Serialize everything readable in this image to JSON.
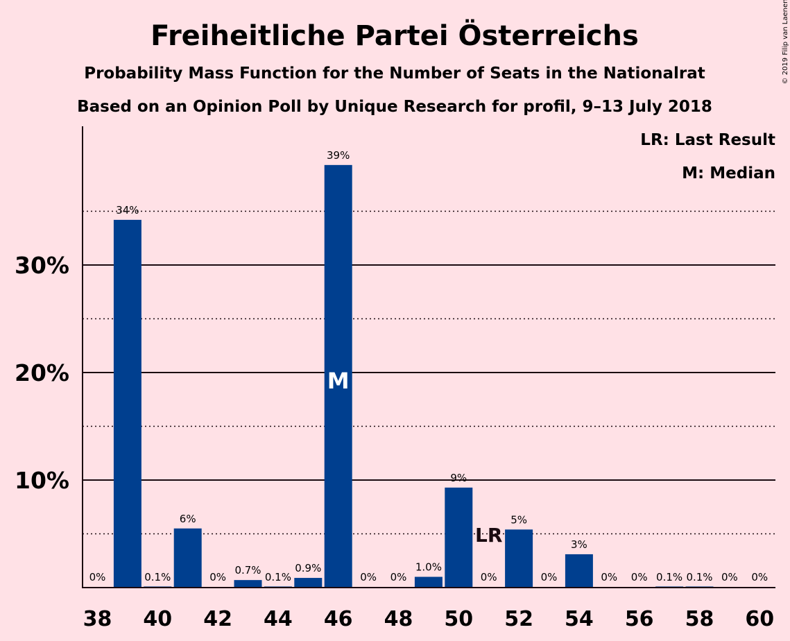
{
  "chart_data": {
    "type": "bar",
    "title": "Freiheitliche Partei Österreichs",
    "subtitle1": "Probability Mass Function for the Number of Seats in the Nationalrat",
    "subtitle2": "Based on an Opinion Poll by Unique Research for profil, 9–13 July 2018",
    "copyright": "© 2019 Filip van Laenen",
    "legend": [
      "LR: Last Result",
      "M: Median"
    ],
    "x": [
      38,
      39,
      40,
      41,
      42,
      43,
      44,
      45,
      46,
      47,
      48,
      49,
      50,
      51,
      52,
      53,
      54,
      55,
      56,
      57,
      58,
      59,
      60
    ],
    "values": [
      0,
      34.2,
      0.1,
      5.5,
      0,
      0.7,
      0.1,
      0.9,
      39.3,
      0,
      0,
      1.0,
      9.3,
      0,
      5.4,
      0,
      3.1,
      0,
      0,
      0.1,
      0.1,
      0,
      0
    ],
    "labels": [
      "0%",
      "34%",
      "0.1%",
      "6%",
      "0%",
      "0.7%",
      "0.1%",
      "0.9%",
      "39%",
      "0%",
      "0%",
      "1.0%",
      "9%",
      "0%",
      "5%",
      "0%",
      "3%",
      "0%",
      "0%",
      "0.1%",
      "0.1%",
      "0%",
      "0%"
    ],
    "x_ticks": [
      38,
      40,
      42,
      44,
      46,
      48,
      50,
      52,
      54,
      56,
      58,
      60
    ],
    "y_ticks": [
      10,
      20,
      30
    ],
    "y_tick_labels": [
      "10%",
      "20%",
      "30%"
    ],
    "median_seat": 46,
    "median_label": "M",
    "last_result_seat": 51,
    "last_result_label": "LR",
    "ylim": [
      0,
      43
    ],
    "bar_color": "#003F8F"
  }
}
